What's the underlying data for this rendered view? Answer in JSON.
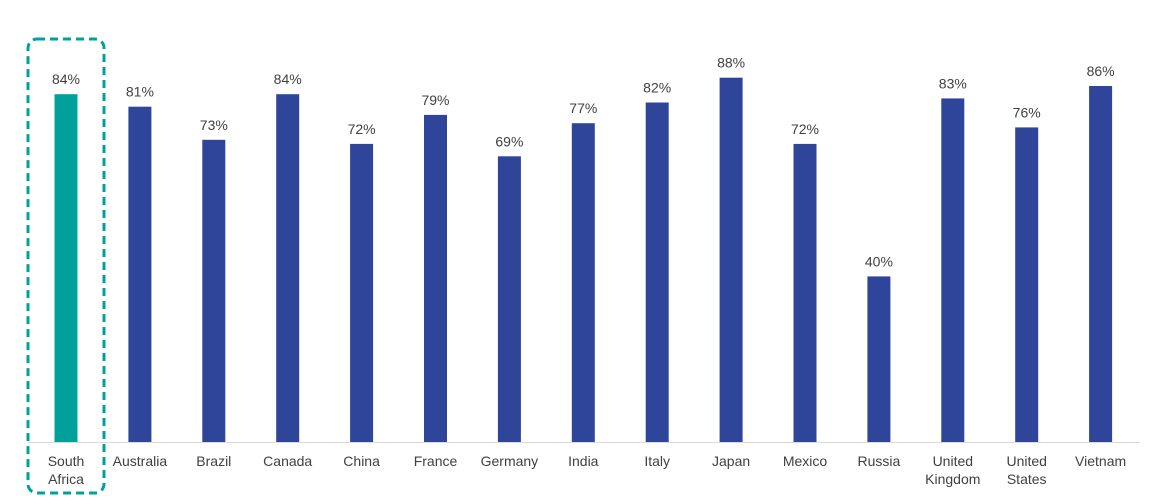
{
  "chart_data": {
    "type": "bar",
    "categories": [
      [
        "South",
        "Africa"
      ],
      [
        "Australia"
      ],
      [
        "Brazil"
      ],
      [
        "Canada"
      ],
      [
        "China"
      ],
      [
        "France"
      ],
      [
        "Germany"
      ],
      [
        "India"
      ],
      [
        "Italy"
      ],
      [
        "Japan"
      ],
      [
        "Mexico"
      ],
      [
        "Russia"
      ],
      [
        "United",
        "Kingdom"
      ],
      [
        "United",
        "States"
      ],
      [
        "Vietnam"
      ]
    ],
    "values": [
      84,
      81,
      73,
      84,
      72,
      79,
      69,
      77,
      82,
      88,
      72,
      40,
      83,
      76,
      86
    ],
    "value_labels": [
      "84%",
      "81%",
      "73%",
      "84%",
      "72%",
      "79%",
      "69%",
      "77%",
      "82%",
      "88%",
      "72%",
      "40%",
      "83%",
      "76%",
      "86%"
    ],
    "ylim": [
      0,
      100
    ],
    "grid": false,
    "highlighted_index": 0,
    "colors": {
      "highlight": "#00A19B",
      "default": "#2E4599",
      "highlight_box": "#00A19B",
      "axis": "#D9D9D9",
      "text": "#404040"
    }
  }
}
